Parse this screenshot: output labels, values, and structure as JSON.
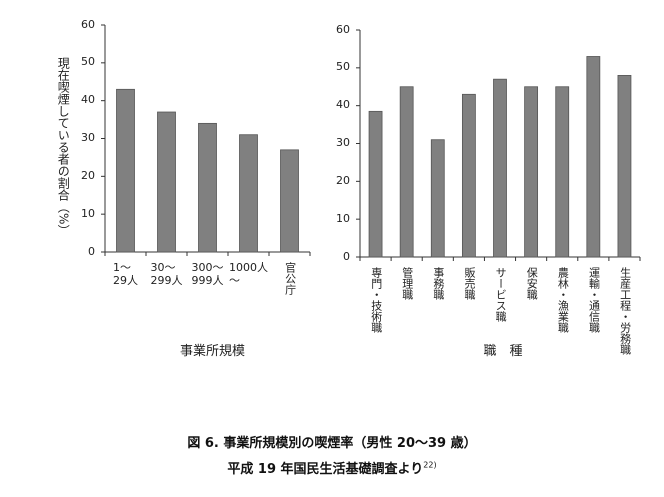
{
  "chart_data": [
    {
      "type": "bar",
      "ylabel": "現在喫煙している者の割合（%）",
      "xlabel": "事業所規模",
      "categories": [
        "1～\n29人",
        "30～\n299人",
        "300～\n999人",
        "1000人\n～",
        "官公庁"
      ],
      "values": [
        43,
        37,
        34,
        31,
        27
      ],
      "color": "#808080",
      "ylim": [
        0,
        60
      ],
      "yticks": [
        0,
        10,
        20,
        30,
        40,
        50,
        60
      ],
      "grid": false
    },
    {
      "type": "bar",
      "xlabel": "職　種",
      "categories": [
        "専門・技術職",
        "管理職",
        "事務職",
        "販売職",
        "サービス職",
        "保安職",
        "農林・漁業職",
        "運輸・通信職",
        "生産工程・労務職"
      ],
      "values": [
        38.5,
        45,
        31,
        43,
        47,
        45,
        45,
        53,
        48
      ],
      "color": "#808080",
      "ylim": [
        0,
        60
      ],
      "yticks": [
        0,
        10,
        20,
        30,
        40,
        50,
        60
      ],
      "grid": false
    }
  ],
  "caption": {
    "title": "図 6.  事業所規模別の喫煙率（男性 20～39 歳）",
    "source": "平成 19 年国民生活基礎調査より",
    "ref": "22)"
  }
}
